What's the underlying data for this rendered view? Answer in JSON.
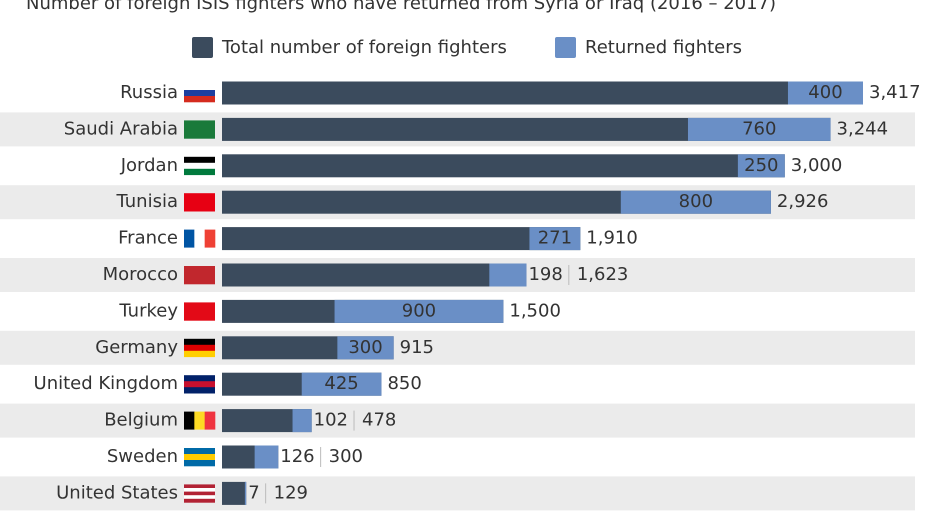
{
  "chart_data": {
    "type": "bar",
    "title": "Number of foreign ISIS fighters who have returned from Syria or Iraq (2016 – 2017)",
    "categories": [
      "Russia",
      "Saudi Arabia",
      "Jordan",
      "Tunisia",
      "France",
      "Morocco",
      "Turkey",
      "Germany",
      "United Kingdom",
      "Belgium",
      "Sweden",
      "United States"
    ],
    "series": [
      {
        "name": "Total number of foreign fighters",
        "color": "#3b4b5d",
        "values": [
          3417,
          3244,
          3000,
          2926,
          1910,
          1623,
          1500,
          915,
          850,
          478,
          300,
          129
        ],
        "value_labels": [
          "3,417",
          "3,244",
          "3,000",
          "2,926",
          "1,910",
          "1,623",
          "1,500",
          "915",
          "850",
          "478",
          "300",
          "129"
        ]
      },
      {
        "name": "Returned fighters",
        "color": "#6a8fc6",
        "values": [
          400,
          760,
          250,
          800,
          271,
          198,
          900,
          300,
          425,
          102,
          126,
          7
        ]
      }
    ]
  }
}
